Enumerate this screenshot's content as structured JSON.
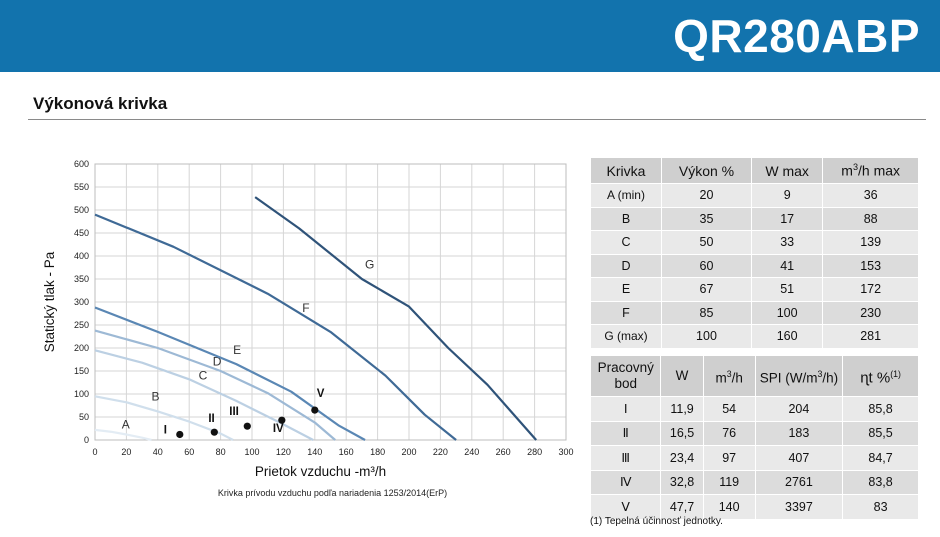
{
  "header": {
    "model": "QR280ABP",
    "background": "#1273ad"
  },
  "section": {
    "title": "Výkonová krivka"
  },
  "chart_data": {
    "type": "line",
    "ylabel": "Statický tlak - Pa",
    "xlabel": "Prietok vzduchu -m³/h",
    "caption": "Krivka prívodu vzduchu podľa nariadenia 1253/2014(ErP)",
    "xlim": [
      0,
      300
    ],
    "ylim": [
      0,
      600
    ],
    "xticks": [
      0,
      20,
      40,
      60,
      80,
      100,
      120,
      140,
      160,
      180,
      200,
      220,
      240,
      260,
      280,
      300
    ],
    "yticks": [
      0,
      50,
      100,
      150,
      200,
      250,
      300,
      350,
      400,
      450,
      500,
      550,
      600
    ],
    "grid": true,
    "series": [
      {
        "name": "A",
        "label_at": [
          17,
          25
        ],
        "x": [
          0,
          10,
          20,
          30,
          36
        ],
        "y": [
          22,
          18,
          12,
          5,
          0
        ],
        "color": "#e3ecf4"
      },
      {
        "name": "B",
        "label_at": [
          36,
          86
        ],
        "x": [
          0,
          20,
          40,
          60,
          80,
          88
        ],
        "y": [
          95,
          82,
          62,
          40,
          14,
          0
        ],
        "color": "#d0dfec"
      },
      {
        "name": "C",
        "label_at": [
          66,
          132
        ],
        "x": [
          0,
          30,
          60,
          90,
          120,
          139
        ],
        "y": [
          195,
          168,
          132,
          85,
          34,
          0
        ],
        "color": "#bcd0e3"
      },
      {
        "name": "D",
        "label_at": [
          75,
          162
        ],
        "x": [
          0,
          40,
          80,
          110,
          140,
          153
        ],
        "y": [
          238,
          200,
          150,
          102,
          38,
          0
        ],
        "color": "#9db9d5"
      },
      {
        "name": "E",
        "label_at": [
          88,
          187
        ],
        "x": [
          0,
          40,
          90,
          125,
          155,
          172
        ],
        "y": [
          288,
          235,
          165,
          105,
          32,
          0
        ],
        "color": "#5a87b4"
      },
      {
        "name": "F",
        "label_at": [
          132,
          278
        ],
        "x": [
          0,
          50,
          110,
          150,
          185,
          210,
          230
        ],
        "y": [
          490,
          420,
          318,
          235,
          140,
          55,
          0
        ],
        "color": "#3f6a96"
      },
      {
        "name": "G",
        "label_at": [
          172,
          373
        ],
        "x": [
          102,
          130,
          170,
          200,
          225,
          250,
          281
        ],
        "y": [
          528,
          460,
          350,
          290,
          200,
          120,
          0
        ],
        "color": "#2f5379"
      }
    ],
    "points": [
      {
        "label": "I",
        "x": 54,
        "y": 12
      },
      {
        "label": "II",
        "x": 76,
        "y": 17
      },
      {
        "label": "III",
        "x": 97,
        "y": 30
      },
      {
        "label": "IV",
        "x": 119,
        "y": 43
      },
      {
        "label": "V",
        "x": 140,
        "y": 65
      }
    ]
  },
  "table1": {
    "headers": [
      "Krivka",
      "Výkon %",
      "W max",
      "m³/h max"
    ],
    "rows": [
      [
        "A (min)",
        "20",
        "9",
        "36"
      ],
      [
        "B",
        "35",
        "17",
        "88"
      ],
      [
        "C",
        "50",
        "33",
        "139"
      ],
      [
        "D",
        "60",
        "41",
        "153"
      ],
      [
        "E",
        "67",
        "51",
        "172"
      ],
      [
        "F",
        "85",
        "100",
        "230"
      ],
      [
        "G (max)",
        "100",
        "160",
        "281"
      ]
    ]
  },
  "table2": {
    "headers": [
      "Pracovný bod",
      "W",
      "m³/h",
      "SPI (W/m³/h)",
      "ɳt %(1)"
    ],
    "rows": [
      [
        "Ⅰ",
        "11,9",
        "54",
        "204",
        "85,8"
      ],
      [
        "Ⅱ",
        "16,5",
        "76",
        "183",
        "85,5"
      ],
      [
        "Ⅲ",
        "23,4",
        "97",
        "407",
        "84,7"
      ],
      [
        "Ⅳ",
        "32,8",
        "119",
        "2761",
        "83,8"
      ],
      [
        "Ⅴ",
        "47,7",
        "140",
        "3397",
        "83"
      ]
    ]
  },
  "footnote": "(1) Tepelná účinnosť jednotky."
}
